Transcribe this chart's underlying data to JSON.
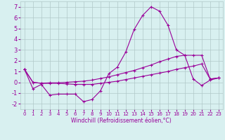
{
  "xlabel": "Windchill (Refroidissement éolien,°C)",
  "x": [
    0,
    1,
    2,
    3,
    4,
    5,
    6,
    7,
    8,
    9,
    10,
    11,
    12,
    13,
    14,
    15,
    16,
    17,
    18,
    19,
    20,
    21,
    22,
    23
  ],
  "line1": [
    1.2,
    -0.6,
    -0.2,
    -1.2,
    -1.1,
    -1.1,
    -1.1,
    -1.8,
    -1.6,
    -0.8,
    0.8,
    1.4,
    2.8,
    4.9,
    6.2,
    7.0,
    6.6,
    5.3,
    3.0,
    2.5,
    0.3,
    -0.3,
    0.2,
    0.4
  ],
  "line2": [
    1.2,
    0.0,
    -0.1,
    -0.05,
    -0.05,
    0.0,
    0.05,
    0.1,
    0.2,
    0.35,
    0.5,
    0.7,
    0.9,
    1.1,
    1.35,
    1.6,
    1.9,
    2.15,
    2.4,
    2.5,
    2.5,
    2.5,
    0.3,
    0.4
  ],
  "line3": [
    1.2,
    0.0,
    -0.1,
    -0.1,
    -0.1,
    -0.15,
    -0.2,
    -0.2,
    -0.2,
    -0.1,
    0.0,
    0.1,
    0.25,
    0.4,
    0.55,
    0.7,
    0.85,
    1.0,
    1.2,
    1.35,
    1.5,
    1.7,
    0.3,
    0.4
  ],
  "line_color": "#990099",
  "bg_color": "#d8f0f0",
  "grid_color": "#b0c8c8",
  "ylim": [
    -2.5,
    7.5
  ],
  "yticks": [
    -2,
    -1,
    0,
    1,
    2,
    3,
    4,
    5,
    6,
    7
  ],
  "xlim": [
    -0.5,
    23.5
  ],
  "xticks": [
    0,
    1,
    2,
    3,
    4,
    5,
    6,
    7,
    8,
    9,
    10,
    11,
    12,
    13,
    14,
    15,
    16,
    17,
    18,
    19,
    20,
    21,
    22,
    23
  ],
  "figsize": [
    3.2,
    2.0
  ],
  "dpi": 100
}
